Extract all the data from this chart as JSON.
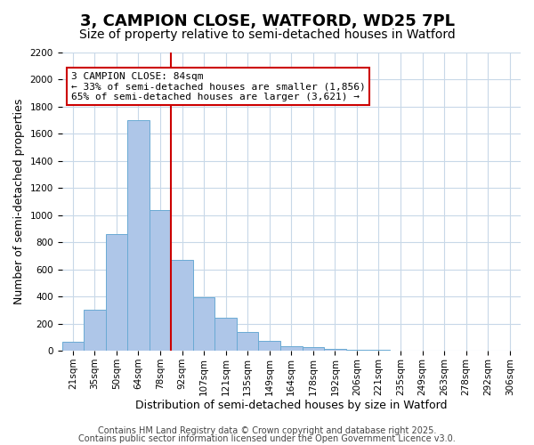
{
  "title": "3, CAMPION CLOSE, WATFORD, WD25 7PL",
  "subtitle": "Size of property relative to semi-detached houses in Watford",
  "xlabel": "Distribution of semi-detached houses by size in Watford",
  "ylabel": "Number of semi-detached properties",
  "bar_labels": [
    "21sqm",
    "35sqm",
    "50sqm",
    "64sqm",
    "78sqm",
    "92sqm",
    "107sqm",
    "121sqm",
    "135sqm",
    "149sqm",
    "164sqm",
    "178sqm",
    "192sqm",
    "206sqm",
    "221sqm",
    "235sqm",
    "249sqm",
    "263sqm",
    "278sqm",
    "292sqm",
    "306sqm"
  ],
  "bar_values": [
    70,
    305,
    860,
    1700,
    1040,
    670,
    395,
    245,
    140,
    75,
    35,
    25,
    15,
    5,
    5,
    2,
    1,
    1,
    0,
    0,
    0
  ],
  "bar_color": "#aec6e8",
  "bar_edge_color": "#6aaad4",
  "property_line_x": 4.5,
  "property_line_color": "#cc0000",
  "annotation_text": "3 CAMPION CLOSE: 84sqm\n← 33% of semi-detached houses are smaller (1,856)\n65% of semi-detached houses are larger (3,621) →",
  "annotation_box_edgecolor": "#cc0000",
  "ylim": [
    0,
    2200
  ],
  "yticks": [
    0,
    200,
    400,
    600,
    800,
    1000,
    1200,
    1400,
    1600,
    1800,
    2000,
    2200
  ],
  "background_color": "#ffffff",
  "grid_color": "#c8d8e8",
  "footer_line1": "Contains HM Land Registry data © Crown copyright and database right 2025.",
  "footer_line2": "Contains public sector information licensed under the Open Government Licence v3.0.",
  "title_fontsize": 13,
  "subtitle_fontsize": 10,
  "xlabel_fontsize": 9,
  "ylabel_fontsize": 9,
  "tick_fontsize": 7.5,
  "annotation_fontsize": 8,
  "footer_fontsize": 7
}
